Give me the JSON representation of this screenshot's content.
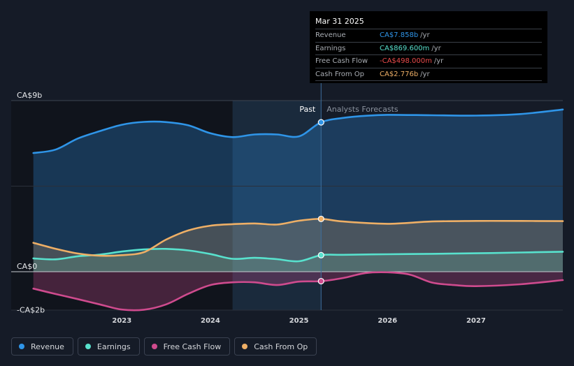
{
  "chart_data": {
    "type": "line",
    "title": "",
    "xlabel": "",
    "ylabel": "",
    "y_unit": "CA$",
    "ylim": [
      -2000000000,
      9000000000
    ],
    "y_tick_labels": [
      "CA$9b",
      "CA$0",
      "-CA$2b"
    ],
    "y_tick_values": [
      9000000000,
      0,
      -2000000000
    ],
    "x_tick_labels": [
      "2023",
      "2024",
      "2025",
      "2026",
      "2027"
    ],
    "x_tick_values": [
      2023.0,
      2024.0,
      2025.0,
      2026.0,
      2027.0
    ],
    "xlim": [
      2021.75,
      2027.98
    ],
    "past_label": "Past",
    "forecast_label": "Analysts Forecasts",
    "divider_x": 2025.25,
    "highlight_start_x": 2024.25,
    "series": [
      {
        "name": "Revenue",
        "color": "#2f95e8",
        "x": [
          2022.0,
          2022.25,
          2022.5,
          2022.75,
          2023.0,
          2023.25,
          2023.5,
          2023.75,
          2024.0,
          2024.25,
          2024.5,
          2024.75,
          2025.0,
          2025.25,
          2025.5,
          2025.75,
          2026.0,
          2026.5,
          2027.0,
          2027.5,
          2027.98
        ],
        "values": [
          6240000000,
          6420000000,
          7000000000,
          7390000000,
          7730000000,
          7880000000,
          7870000000,
          7700000000,
          7280000000,
          7080000000,
          7220000000,
          7220000000,
          7120000000,
          7858000000,
          8090000000,
          8200000000,
          8250000000,
          8230000000,
          8210000000,
          8290000000,
          8530000000
        ],
        "forecast_from_index": 13
      },
      {
        "name": "Earnings",
        "color": "#58e1cd",
        "x": [
          2022.0,
          2022.25,
          2022.5,
          2022.75,
          2023.0,
          2023.25,
          2023.5,
          2023.75,
          2024.0,
          2024.25,
          2024.5,
          2024.75,
          2025.0,
          2025.25,
          2025.5,
          2026.0,
          2026.5,
          2027.0,
          2027.5,
          2027.98
        ],
        "values": [
          700000000,
          650000000,
          810000000,
          900000000,
          1060000000,
          1170000000,
          1200000000,
          1120000000,
          930000000,
          680000000,
          730000000,
          660000000,
          550000000,
          869600000,
          890000000,
          920000000,
          940000000,
          970000000,
          1010000000,
          1050000000
        ],
        "forecast_from_index": 13
      },
      {
        "name": "Free Cash Flow",
        "color": "#cf4b8e",
        "x": [
          2022.0,
          2022.25,
          2022.5,
          2022.75,
          2023.0,
          2023.25,
          2023.5,
          2023.75,
          2024.0,
          2024.25,
          2024.5,
          2024.75,
          2025.0,
          2025.25,
          2025.5,
          2025.75,
          2026.0,
          2026.25,
          2026.5,
          2026.75,
          2027.0,
          2027.5,
          2027.98
        ],
        "values": [
          -890000000,
          -1170000000,
          -1440000000,
          -1720000000,
          -1990000000,
          -2000000000,
          -1720000000,
          -1160000000,
          -700000000,
          -560000000,
          -560000000,
          -700000000,
          -520000000,
          -498000000,
          -330000000,
          -70000000,
          -30000000,
          -150000000,
          -570000000,
          -700000000,
          -760000000,
          -660000000,
          -440000000
        ],
        "forecast_from_index": 13
      },
      {
        "name": "Cash From Op",
        "color": "#eeaf66",
        "x": [
          2022.0,
          2022.25,
          2022.5,
          2022.75,
          2023.0,
          2023.25,
          2023.5,
          2023.75,
          2024.0,
          2024.25,
          2024.5,
          2024.75,
          2025.0,
          2025.25,
          2025.5,
          2026.0,
          2026.5,
          2027.0,
          2027.5,
          2027.98
        ],
        "values": [
          1520000000,
          1210000000,
          960000000,
          840000000,
          870000000,
          1030000000,
          1690000000,
          2170000000,
          2420000000,
          2500000000,
          2540000000,
          2480000000,
          2680000000,
          2776000000,
          2640000000,
          2520000000,
          2640000000,
          2670000000,
          2670000000,
          2660000000
        ],
        "forecast_from_index": 13
      }
    ],
    "highlight_points_index": 13
  },
  "tooltip": {
    "date": "Mar 31 2025",
    "rows": [
      {
        "label": "Revenue",
        "value": "CA$7.858b",
        "unit": "/yr",
        "color": "#2f95e8"
      },
      {
        "label": "Earnings",
        "value": "CA$869.600m",
        "unit": "/yr",
        "color": "#58e1cd"
      },
      {
        "label": "Free Cash Flow",
        "value": "-CA$498.000m",
        "unit": "/yr",
        "color": "#ea4b4b"
      },
      {
        "label": "Cash From Op",
        "value": "CA$2.776b",
        "unit": "/yr",
        "color": "#eeaf66"
      }
    ]
  },
  "legend": [
    {
      "label": "Revenue",
      "color": "#2f95e8"
    },
    {
      "label": "Earnings",
      "color": "#58e1cd"
    },
    {
      "label": "Free Cash Flow",
      "color": "#cf4b8e"
    },
    {
      "label": "Cash From Op",
      "color": "#eeaf66"
    }
  ]
}
